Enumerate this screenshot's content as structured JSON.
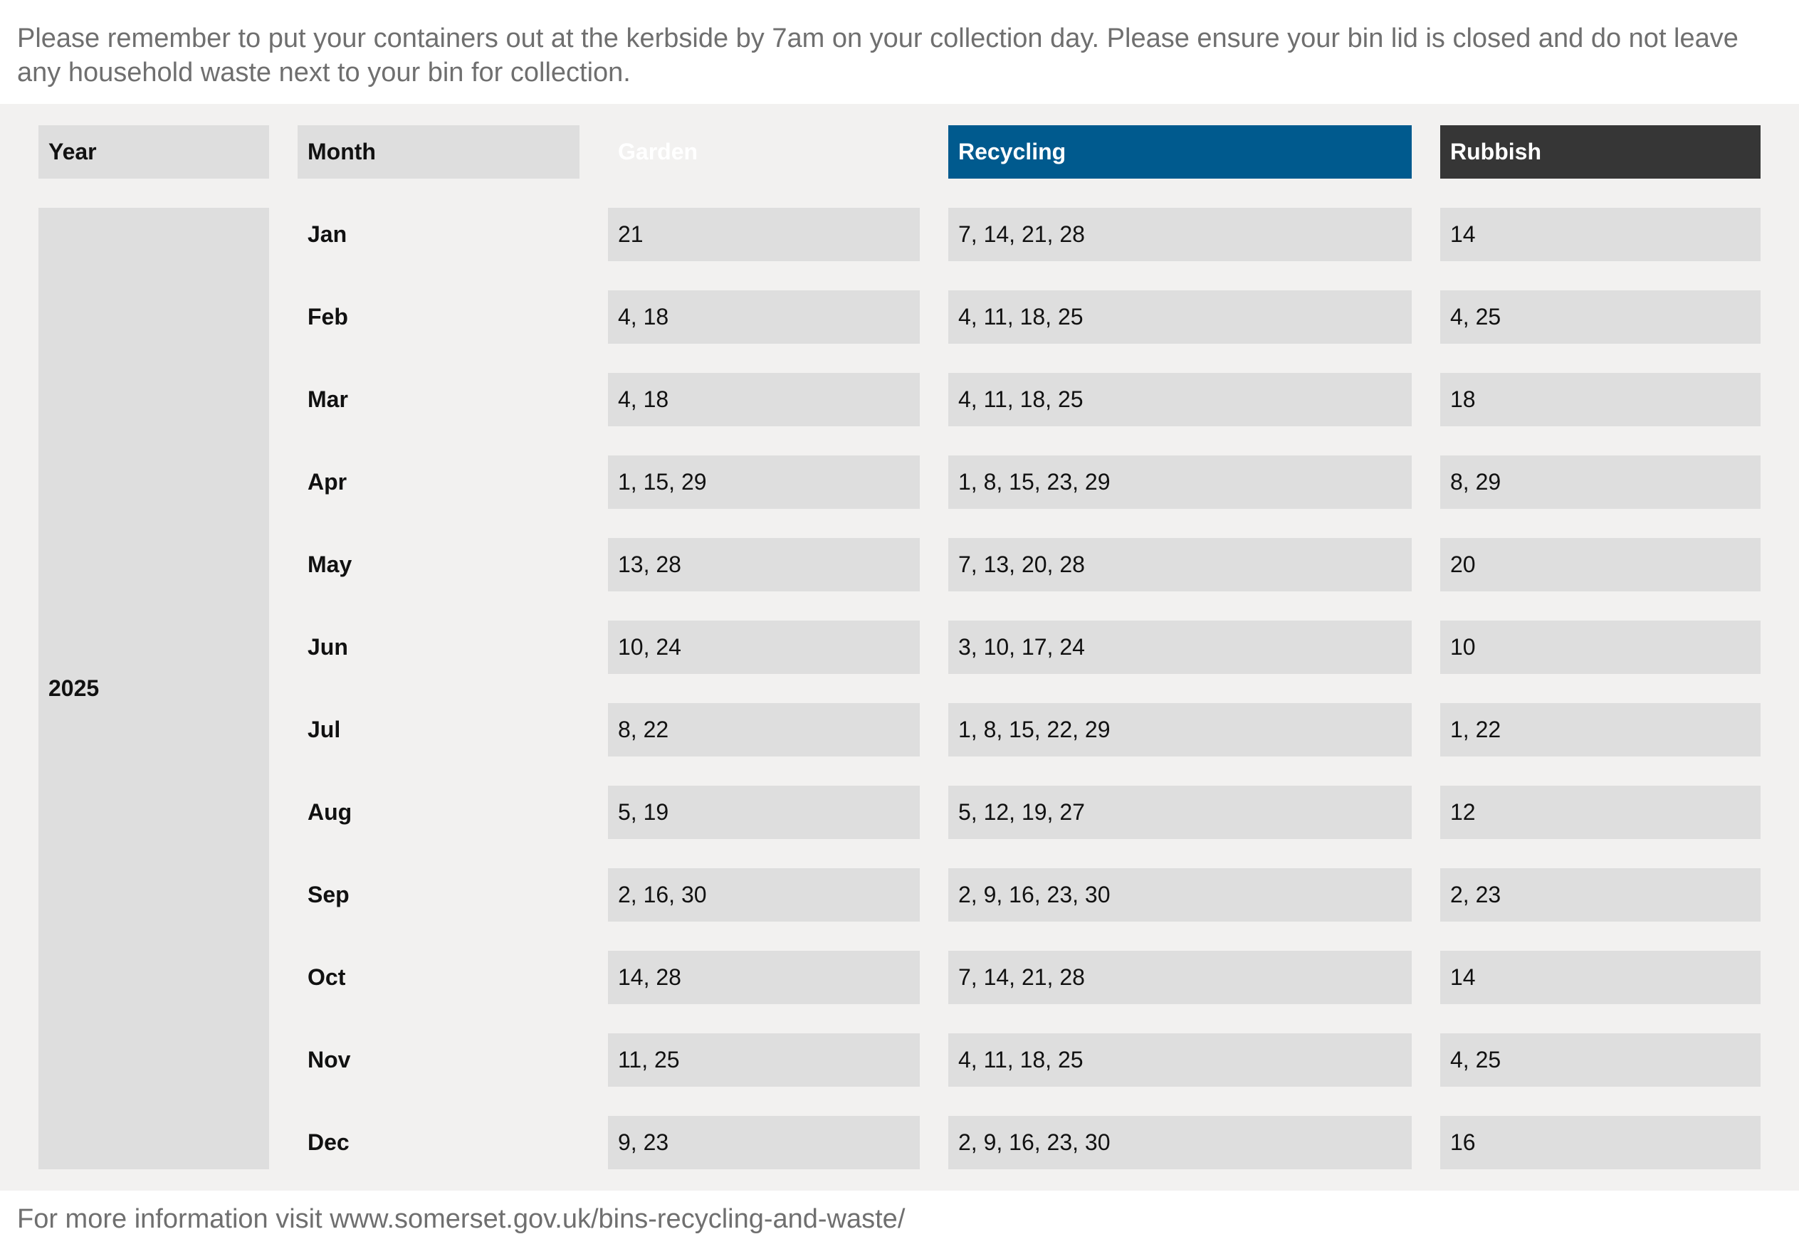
{
  "intro_text": "Please remember to put your containers out at the kerbside by 7am on your collection day. Please ensure your bin lid is closed and do not leave any household waste next to your bin for collection.",
  "headers": {
    "year": "Year",
    "month": "Month",
    "garden": "Garden",
    "recycling": "Recycling",
    "rubbish": "Rubbish"
  },
  "year": "2025",
  "rows": [
    {
      "month": "Jan",
      "garden": "21",
      "recycling": "7, 14, 21, 28",
      "rubbish": "14"
    },
    {
      "month": "Feb",
      "garden": "4, 18",
      "recycling": "4, 11, 18, 25",
      "rubbish": "4, 25"
    },
    {
      "month": "Mar",
      "garden": "4, 18",
      "recycling": "4, 11, 18, 25",
      "rubbish": "18"
    },
    {
      "month": "Apr",
      "garden": "1, 15, 29",
      "recycling": "1, 8, 15, 23, 29",
      "rubbish": "8, 29"
    },
    {
      "month": "May",
      "garden": "13, 28",
      "recycling": "7, 13, 20, 28",
      "rubbish": "20"
    },
    {
      "month": "Jun",
      "garden": "10, 24",
      "recycling": "3, 10, 17, 24",
      "rubbish": "10"
    },
    {
      "month": "Jul",
      "garden": "8, 22",
      "recycling": "1, 8, 15, 22, 29",
      "rubbish": "1, 22"
    },
    {
      "month": "Aug",
      "garden": "5, 19",
      "recycling": "5, 12, 19, 27",
      "rubbish": "12"
    },
    {
      "month": "Sep",
      "garden": "2, 16, 30",
      "recycling": "2, 9, 16, 23, 30",
      "rubbish": "2, 23"
    },
    {
      "month": "Oct",
      "garden": "14, 28",
      "recycling": "7, 14, 21, 28",
      "rubbish": "14"
    },
    {
      "month": "Nov",
      "garden": "11, 25",
      "recycling": "4, 11, 18, 25",
      "rubbish": "4, 25"
    },
    {
      "month": "Dec",
      "garden": "9, 23",
      "recycling": "2, 9, 16, 23, 30",
      "rubbish": "16"
    }
  ],
  "footer_text": "For more information visit www.somerset.gov.uk/bins-recycling-and-waste/",
  "colors": {
    "recycling_header": "#005a8e",
    "rubbish_header": "#363636",
    "panel_background": "#f2f1f0",
    "cell_background": "#dedede"
  }
}
